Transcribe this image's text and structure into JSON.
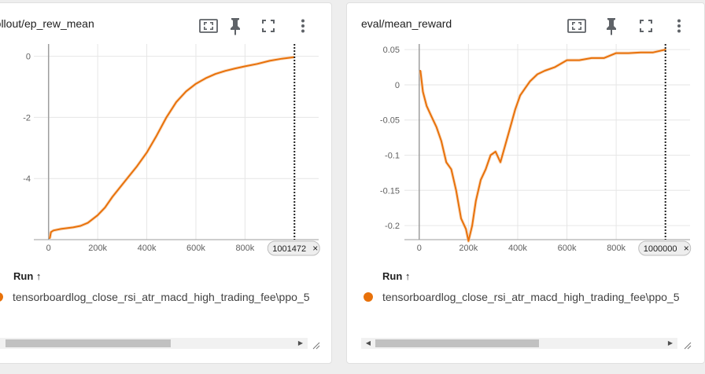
{
  "colors": {
    "run": "#e8710a",
    "run_smooth_bg": "#f5c79d",
    "grid": "#e6e6e6",
    "axis": "#9e9e9e",
    "icon": "#5f6368"
  },
  "icons": [
    "fit-domain-icon",
    "pin-icon",
    "fullscreen-icon",
    "more-vert-icon"
  ],
  "left_card": {
    "title": "rollout/ep_rew_mean",
    "step_badge": "1001472",
    "close_glyph": "×",
    "run_header": "Run ↑",
    "run_name": "tensorboardlog_close_rsi_atr_macd_high_trading_fee\\ppo_5",
    "scroll_right_arrow": "▶"
  },
  "right_card": {
    "title": "eval/mean_reward",
    "step_badge": "1000000",
    "close_glyph": "×",
    "run_header": "Run ↑",
    "run_name": "tensorboardlog_close_rsi_atr_macd_high_trading_fee\\ppo_5",
    "scroll_left_arrow": "◀",
    "scroll_right_arrow": "▶"
  },
  "chart_data": [
    {
      "type": "line",
      "title": "rollout/ep_rew_mean",
      "xlabel": "",
      "ylabel": "",
      "xlim": [
        -60000,
        1100000
      ],
      "ylim": [
        -6.0,
        0.4
      ],
      "x_ticks": [
        0,
        200000,
        400000,
        600000,
        800000
      ],
      "x_tick_labels": [
        "0",
        "200k",
        "400k",
        "600k",
        "800k"
      ],
      "y_ticks": [
        0,
        -2,
        -4
      ],
      "y_tick_labels": [
        "0",
        "-2",
        "-4"
      ],
      "grid": true,
      "step_marker": 1001472,
      "series": [
        {
          "x": [
            5000,
            10000,
            20000,
            50000,
            100000,
            130000,
            160000,
            200000,
            230000,
            260000,
            300000,
            330000,
            360000,
            400000,
            440000,
            480000,
            520000,
            560000,
            600000,
            640000,
            680000,
            720000,
            760000,
            800000,
            850000,
            900000,
            950000,
            1000000
          ],
          "y": [
            -5.95,
            -5.75,
            -5.7,
            -5.65,
            -5.6,
            -5.55,
            -5.45,
            -5.2,
            -4.95,
            -4.6,
            -4.2,
            -3.9,
            -3.6,
            -3.15,
            -2.6,
            -2.0,
            -1.5,
            -1.15,
            -0.9,
            -0.72,
            -0.58,
            -0.48,
            -0.4,
            -0.33,
            -0.25,
            -0.15,
            -0.08,
            -0.03
          ]
        }
      ]
    },
    {
      "type": "line",
      "title": "eval/mean_reward",
      "xlabel": "",
      "ylabel": "",
      "xlim": [
        -60000,
        1100000
      ],
      "ylim": [
        -0.22,
        0.058
      ],
      "x_ticks": [
        0,
        200000,
        400000,
        600000,
        800000
      ],
      "x_tick_labels": [
        "0",
        "200k",
        "400k",
        "600k",
        "800k"
      ],
      "y_ticks": [
        0.05,
        0,
        -0.05,
        -0.1,
        -0.15,
        -0.2
      ],
      "y_tick_labels": [
        "0.05",
        "0",
        "-0.05",
        "-0.1",
        "-0.15",
        "-0.2"
      ],
      "grid": true,
      "step_marker": 1000000,
      "series": [
        {
          "x": [
            5000,
            15000,
            30000,
            50000,
            70000,
            90000,
            110000,
            130000,
            150000,
            170000,
            190000,
            200000,
            215000,
            230000,
            250000,
            270000,
            290000,
            310000,
            330000,
            350000,
            370000,
            390000,
            410000,
            430000,
            450000,
            480000,
            510000,
            550000,
            600000,
            650000,
            700000,
            750000,
            800000,
            850000,
            900000,
            950000,
            1000000
          ],
          "y": [
            0.02,
            -0.01,
            -0.03,
            -0.045,
            -0.06,
            -0.08,
            -0.11,
            -0.12,
            -0.15,
            -0.19,
            -0.205,
            -0.222,
            -0.2,
            -0.165,
            -0.135,
            -0.12,
            -0.1,
            -0.095,
            -0.11,
            -0.085,
            -0.06,
            -0.035,
            -0.015,
            -0.005,
            0.005,
            0.015,
            0.02,
            0.025,
            0.035,
            0.035,
            0.038,
            0.038,
            0.045,
            0.045,
            0.046,
            0.046,
            0.05
          ]
        }
      ]
    }
  ]
}
